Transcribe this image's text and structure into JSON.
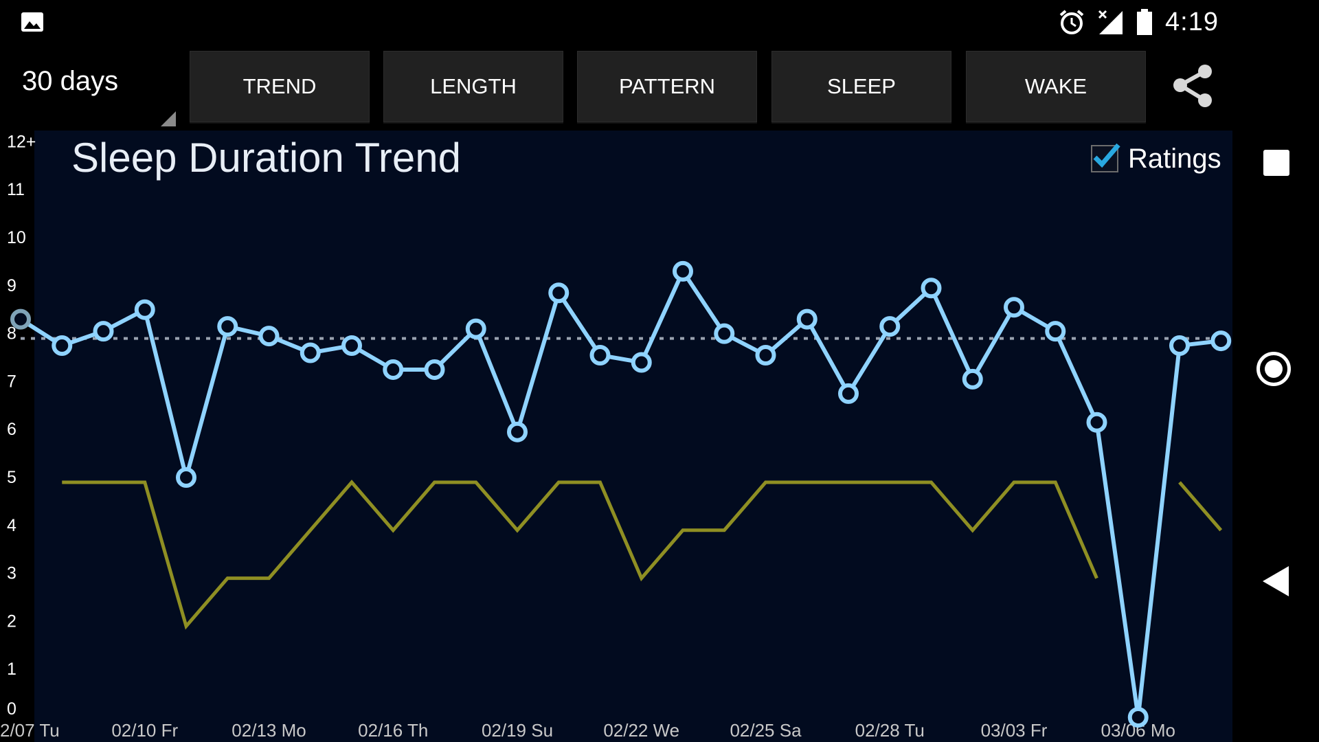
{
  "status_bar": {
    "time": "4:19",
    "icons": [
      "gallery-icon",
      "alarm-icon",
      "signal-icon",
      "battery-icon"
    ]
  },
  "toolbar": {
    "range": "30 days",
    "tabs": [
      {
        "id": "trend",
        "label": "TREND"
      },
      {
        "id": "length",
        "label": "LENGTH"
      },
      {
        "id": "pattern",
        "label": "PATTERN"
      },
      {
        "id": "sleep",
        "label": "SLEEP"
      },
      {
        "id": "wake",
        "label": "WAKE"
      }
    ],
    "share_icon": "share-icon"
  },
  "ratings_toggle": {
    "label": "Ratings",
    "checked": true
  },
  "colors": {
    "duration_line": "#8fd3ff",
    "rating_line": "#8f8f23",
    "average_line": "#9aa3b0",
    "plot_bg": "#020b1f",
    "ratings_check": "#29a8e0"
  },
  "chart_data": {
    "type": "line",
    "title": "Sleep Duration Trend",
    "xlabel": "",
    "ylabel": "",
    "ylim": [
      0,
      12
    ],
    "y_ticks": [
      "0",
      "1",
      "2",
      "3",
      "4",
      "5",
      "6",
      "7",
      "8",
      "9",
      "10",
      "11",
      "12+"
    ],
    "x_tick_labels": [
      "2/07 Tu",
      "02/10 Fr",
      "02/13 Mo",
      "02/16 Th",
      "02/19 Su",
      "02/22 We",
      "02/25 Sa",
      "02/28 Tu",
      "03/03 Fr",
      "03/06 Mo"
    ],
    "x_tick_indices": [
      0,
      3,
      6,
      9,
      12,
      15,
      18,
      21,
      24,
      27
    ],
    "x_count": 30,
    "average": 7.9,
    "grid": false,
    "series": [
      {
        "id": "duration",
        "values": [
          8.3,
          7.75,
          8.05,
          8.5,
          5.0,
          8.15,
          7.95,
          7.6,
          7.75,
          7.25,
          7.25,
          8.1,
          5.95,
          8.85,
          7.55,
          7.4,
          9.3,
          8.0,
          7.55,
          8.3,
          6.75,
          8.15,
          8.95,
          7.05,
          8.55,
          8.05,
          6.15,
          0.0,
          7.75,
          7.85
        ]
      },
      {
        "id": "rating",
        "values": [
          null,
          4.9,
          4.9,
          4.9,
          1.9,
          2.9,
          2.9,
          3.9,
          4.9,
          3.9,
          4.9,
          4.9,
          3.9,
          4.9,
          4.9,
          2.9,
          3.9,
          3.9,
          4.9,
          4.9,
          4.9,
          4.9,
          4.9,
          3.9,
          4.9,
          4.9,
          2.9,
          null,
          4.9,
          3.9
        ]
      }
    ]
  }
}
